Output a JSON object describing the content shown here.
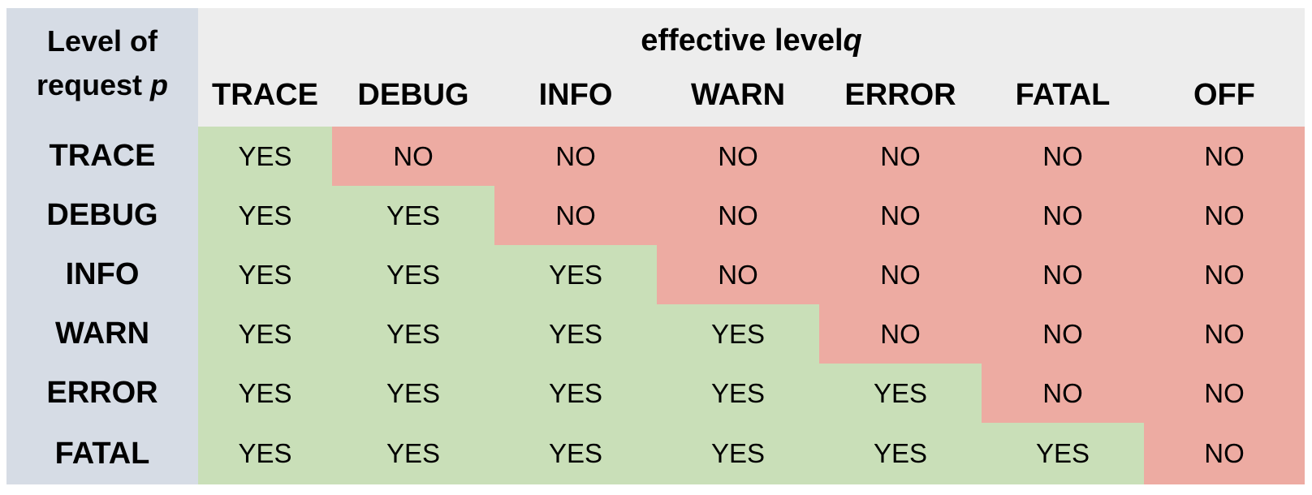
{
  "corner": {
    "line1": "Level of",
    "line2_text": "request ",
    "line2_var": "p"
  },
  "header": {
    "title_text": "effective level ",
    "title_var": "q"
  },
  "columns": [
    "TRACE",
    "DEBUG",
    "INFO",
    "WARN",
    "ERROR",
    "FATAL",
    "OFF"
  ],
  "rows": [
    {
      "label": "TRACE",
      "cells": [
        "YES",
        "NO",
        "NO",
        "NO",
        "NO",
        "NO",
        "NO"
      ]
    },
    {
      "label": "DEBUG",
      "cells": [
        "YES",
        "YES",
        "NO",
        "NO",
        "NO",
        "NO",
        "NO"
      ]
    },
    {
      "label": "INFO",
      "cells": [
        "YES",
        "YES",
        "YES",
        "NO",
        "NO",
        "NO",
        "NO"
      ]
    },
    {
      "label": "WARN",
      "cells": [
        "YES",
        "YES",
        "YES",
        "YES",
        "NO",
        "NO",
        "NO"
      ]
    },
    {
      "label": "ERROR",
      "cells": [
        "YES",
        "YES",
        "YES",
        "YES",
        "YES",
        "NO",
        "NO"
      ]
    },
    {
      "label": "FATAL",
      "cells": [
        "YES",
        "YES",
        "YES",
        "YES",
        "YES",
        "YES",
        "NO"
      ]
    }
  ],
  "colors": {
    "yes": "#c9dfb8",
    "no": "#edaba2",
    "row_header": "#d6dce5",
    "col_header": "#ededed"
  }
}
